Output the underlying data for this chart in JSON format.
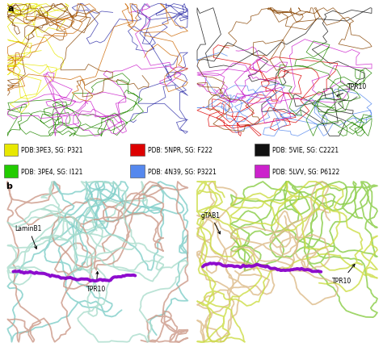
{
  "panel_a_label": "a",
  "panel_b_label": "b",
  "legend_items": [
    {
      "label": "PDB:3PE3, SG: P321",
      "color": "#e8e800"
    },
    {
      "label": "PDB: 5NPR, SG: F222",
      "color": "#dd0000"
    },
    {
      "label": "PDB: 5VIE, SG: C2221",
      "color": "#111111"
    },
    {
      "label": "PDB: 3PE4, SG: I121",
      "color": "#22cc00"
    },
    {
      "label": "PDB: 4N39, SG: P3221",
      "color": "#5588ee"
    },
    {
      "label": "PDB: 5LVV, SG: P6122",
      "color": "#cc22cc"
    }
  ],
  "annotation_tpr10_a": "TPR10",
  "annotation_tpr10_b_left": "TPR10",
  "annotation_tpr10_b_right": "TPR10",
  "annotation_laminb1": "LaminB1",
  "annotation_gtab1": "gTAB1",
  "bg_color": "#ffffff",
  "fig_width": 4.74,
  "fig_height": 4.31,
  "dpi": 100,
  "colors_a_left": [
    "#3333aa",
    "#228800",
    "#e8e800",
    "#cc22cc",
    "#884400",
    "#cc6600"
  ],
  "colors_a_right": [
    "#111111",
    "#dd0000",
    "#5588ee",
    "#cc22cc",
    "#228800",
    "#884400"
  ],
  "colors_b_left": [
    "#7ecec8",
    "#cc9988",
    "#aaddcc"
  ],
  "colors_b_right": [
    "#88cc44",
    "#ddbb88",
    "#ccdd44"
  ],
  "purple_color": "#8800cc",
  "legend_fontsize": 5.5,
  "annotation_fontsize": 5.5
}
